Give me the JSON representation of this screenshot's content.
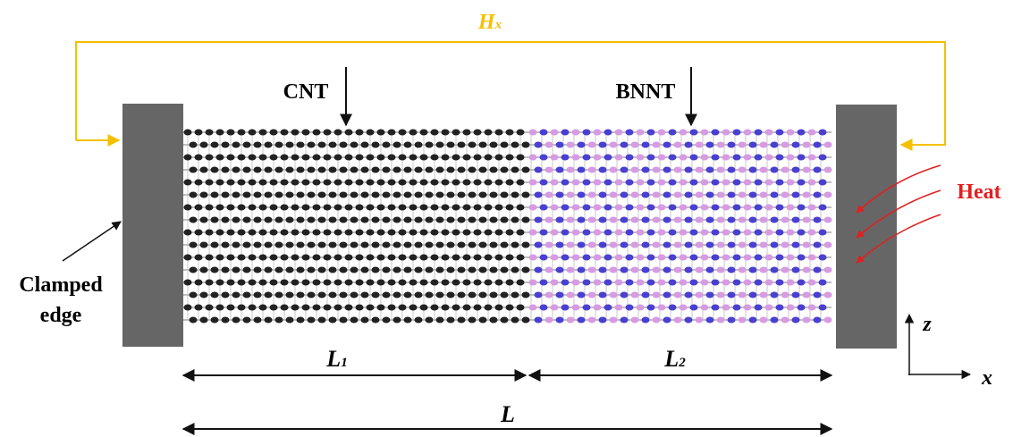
{
  "labels": {
    "hx": {
      "main": "H",
      "sub": "x"
    },
    "cnt": "CNT",
    "bnnt": "BNNT",
    "heat": "Heat",
    "clamped_edge": [
      "Clamped",
      "edge"
    ],
    "l1": {
      "main": "L",
      "sub": "1"
    },
    "l2": {
      "main": "L",
      "sub": "2"
    },
    "l": "L",
    "axis_z": "z",
    "axis_x": "x"
  }
}
